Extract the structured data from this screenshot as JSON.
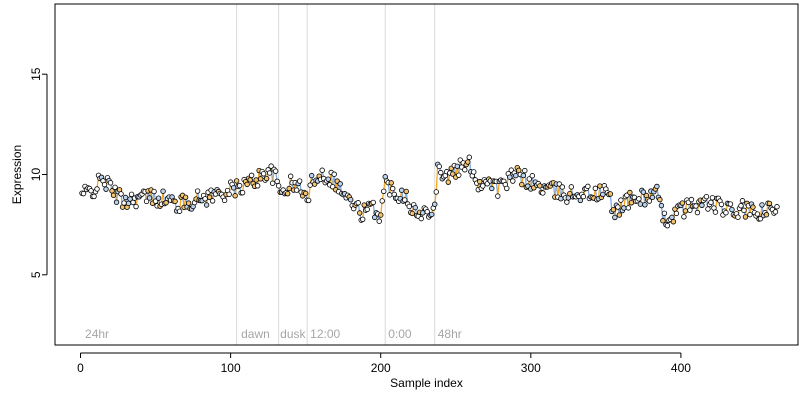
{
  "chart_data": {
    "type": "scatter",
    "title": "",
    "xlabel": "Sample index",
    "ylabel": "Expression",
    "xlim": [
      -17,
      478
    ],
    "ylim": [
      1.5,
      18.5
    ],
    "x_ticks": [
      0,
      100,
      200,
      300,
      400
    ],
    "x_tick_labels": [
      "0",
      "100",
      "200",
      "300",
      "400"
    ],
    "y_ticks": [
      5,
      10,
      15
    ],
    "y_tick_labels": [
      "5",
      "10",
      "15"
    ],
    "grid": false,
    "section_boundaries": [
      104,
      132,
      151,
      203,
      236
    ],
    "section_labels": [
      {
        "x": 3,
        "text": "24hr"
      },
      {
        "x": 107,
        "text": "dawn"
      },
      {
        "x": 133,
        "text": "dusk"
      },
      {
        "x": 153,
        "text": "12:00"
      },
      {
        "x": 205,
        "text": "0:00"
      },
      {
        "x": 238,
        "text": "48hr"
      }
    ],
    "colors": {
      "segment_up": "#f5a623",
      "segment_down": "#7fa8e0",
      "point_stroke": "#000000",
      "point_fill_a": "#ffffff",
      "point_fill_b": "#f5c46e",
      "point_fill_c": "#bcd3f0",
      "section_line": "#d9d9d9"
    },
    "series": [
      {
        "x_start": 1,
        "x_end": 464,
        "anchors": [
          [
            1,
            9.0
          ],
          [
            8,
            9.2
          ],
          [
            15,
            9.8
          ],
          [
            20,
            9.3
          ],
          [
            28,
            8.7
          ],
          [
            35,
            8.8
          ],
          [
            45,
            8.9
          ],
          [
            55,
            8.8
          ],
          [
            65,
            8.5
          ],
          [
            75,
            8.7
          ],
          [
            85,
            8.9
          ],
          [
            95,
            9.1
          ],
          [
            104,
            9.3
          ],
          [
            110,
            9.5
          ],
          [
            118,
            9.8
          ],
          [
            125,
            10.2
          ],
          [
            130,
            9.8
          ],
          [
            133,
            9.1
          ],
          [
            140,
            9.5
          ],
          [
            148,
            9.3
          ],
          [
            151,
            8.6
          ],
          [
            155,
            9.9
          ],
          [
            162,
            10.0
          ],
          [
            168,
            9.8
          ],
          [
            173,
            9.3
          ],
          [
            180,
            8.6
          ],
          [
            187,
            8.1
          ],
          [
            195,
            8.3
          ],
          [
            200,
            8.0
          ],
          [
            203,
            9.6
          ],
          [
            210,
            9.1
          ],
          [
            217,
            9.0
          ],
          [
            222,
            8.2
          ],
          [
            227,
            7.9
          ],
          [
            232,
            8.3
          ],
          [
            236,
            8.5
          ],
          [
            238,
            10.3
          ],
          [
            245,
            9.9
          ],
          [
            252,
            10.3
          ],
          [
            260,
            10.5
          ],
          [
            265,
            9.5
          ],
          [
            272,
            9.8
          ],
          [
            278,
            9.3
          ],
          [
            285,
            9.7
          ],
          [
            290,
            10.0
          ],
          [
            296,
            9.8
          ],
          [
            305,
            9.4
          ],
          [
            315,
            9.2
          ],
          [
            325,
            9.0
          ],
          [
            335,
            9.1
          ],
          [
            345,
            9.0
          ],
          [
            351,
            9.2
          ],
          [
            355,
            8.1
          ],
          [
            362,
            8.6
          ],
          [
            370,
            8.8
          ],
          [
            378,
            8.9
          ],
          [
            384,
            9.1
          ],
          [
            388,
            7.7
          ],
          [
            395,
            8.0
          ],
          [
            402,
            8.3
          ],
          [
            410,
            8.5
          ],
          [
            418,
            8.6
          ],
          [
            426,
            8.4
          ],
          [
            434,
            8.1
          ],
          [
            442,
            8.3
          ],
          [
            450,
            8.0
          ],
          [
            458,
            8.2
          ],
          [
            464,
            8.1
          ]
        ],
        "noise_amplitude": 0.42,
        "seed": 42
      }
    ]
  }
}
